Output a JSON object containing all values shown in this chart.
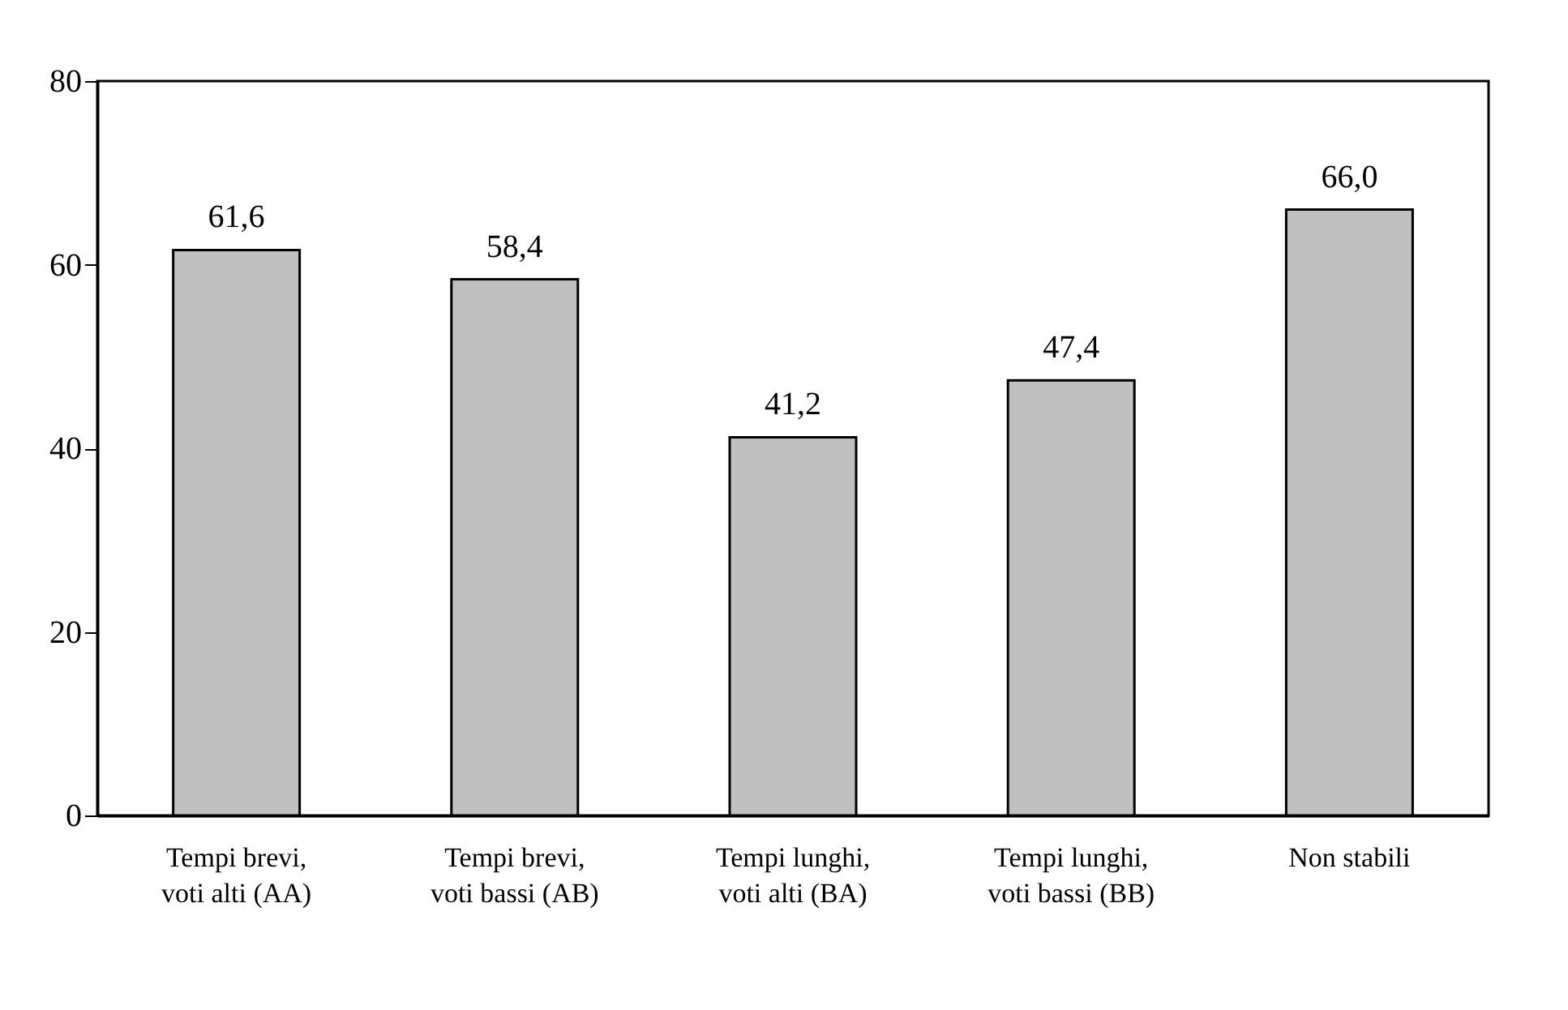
{
  "chart_data": {
    "type": "bar",
    "categories": [
      "Tempi brevi, voti alti (AA)",
      "Tempi brevi, voti bassi (AB)",
      "Tempi lunghi, voti alti (BA)",
      "Tempi lunghi, voti bassi (BB)",
      "Non stabili"
    ],
    "values": [
      61.6,
      58.4,
      41.2,
      47.4,
      66.0
    ],
    "value_labels": [
      "61,6",
      "58,4",
      "41,2",
      "47,4",
      "66,0"
    ],
    "color": "#c0c0c0",
    "ylim": [
      0,
      80
    ],
    "yticks": [
      0,
      20,
      40,
      60,
      80
    ],
    "grid": false
  }
}
